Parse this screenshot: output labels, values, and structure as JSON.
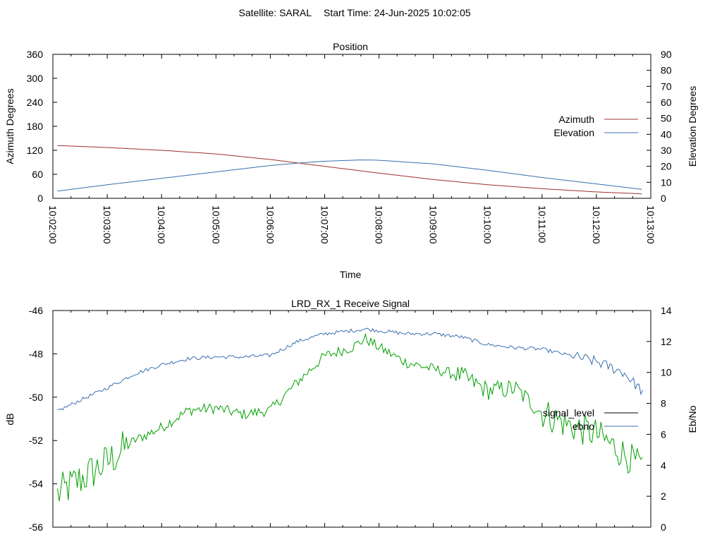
{
  "header": {
    "satellite_label": "Satellite: SARAL",
    "start_time_label": "Start Time: 24-Jun-2025 10:02:05"
  },
  "chart_data": [
    {
      "type": "line",
      "title": "Position",
      "xlabel": "Time",
      "ylabel_left": "Azimuth Degrees",
      "ylabel_right": "Elevation Degrees",
      "xlim": [
        "10:02:00",
        "10:13:00"
      ],
      "x_ticks": [
        "10:02:00",
        "10:03:00",
        "10:04:00",
        "10:05:00",
        "10:06:00",
        "10:07:00",
        "10:08:00",
        "10:09:00",
        "10:10:00",
        "10:11:00",
        "10:12:00",
        "10:13:00"
      ],
      "ylim_left": [
        0,
        360
      ],
      "y_ticks_left": [
        0,
        60,
        120,
        180,
        240,
        300,
        360
      ],
      "ylim_right": [
        0,
        90
      ],
      "y_ticks_right": [
        0,
        10,
        20,
        30,
        40,
        50,
        60,
        70,
        80,
        90
      ],
      "grid": false,
      "legend_position": "right",
      "series": [
        {
          "name": "Azimuth",
          "axis": "left",
          "color": "#a03030",
          "x": [
            "10:02:05",
            "10:03:00",
            "10:04:00",
            "10:05:00",
            "10:06:00",
            "10:07:00",
            "10:08:00",
            "10:09:00",
            "10:10:00",
            "10:11:00",
            "10:12:00",
            "10:12:52"
          ],
          "y": [
            132,
            127,
            120,
            111,
            97,
            80,
            63,
            47,
            34,
            24,
            16,
            11
          ]
        },
        {
          "name": "Elevation",
          "axis": "right",
          "color": "#3a6fb0",
          "x": [
            "10:02:05",
            "10:03:00",
            "10:04:00",
            "10:05:00",
            "10:06:00",
            "10:06:30",
            "10:07:00",
            "10:07:40",
            "10:08:00",
            "10:09:00",
            "10:10:00",
            "10:11:00",
            "10:12:00",
            "10:12:52"
          ],
          "y": [
            4.5,
            8.5,
            12.5,
            16.5,
            20.5,
            22,
            23.2,
            24,
            23.8,
            21.5,
            17.5,
            13,
            9,
            5.5
          ]
        }
      ]
    },
    {
      "type": "line",
      "title": "LRD_RX_1 Receive Signal",
      "xlabel": "",
      "ylabel_left": "dB",
      "ylabel_right": "Eb/No",
      "xlim": [
        "10:02:00",
        "10:13:00"
      ],
      "ylim_left": [
        -56,
        -46
      ],
      "y_ticks_left": [
        -56,
        -54,
        -52,
        -50,
        -48,
        -46
      ],
      "ylim_right": [
        0,
        14
      ],
      "y_ticks_right": [
        0,
        2,
        4,
        6,
        8,
        10,
        12,
        14
      ],
      "grid": false,
      "legend_position": "right",
      "series": [
        {
          "name": "signal_level",
          "axis": "left",
          "color": "#00a000",
          "legend_color": "#000000",
          "x": [
            "10:02:05",
            "10:02:30",
            "10:03:00",
            "10:03:30",
            "10:04:00",
            "10:04:30",
            "10:05:00",
            "10:05:30",
            "10:06:00",
            "10:06:30",
            "10:07:00",
            "10:07:30",
            "10:07:45",
            "10:08:00",
            "10:08:30",
            "10:09:00",
            "10:09:30",
            "10:10:00",
            "10:10:30",
            "10:11:00",
            "10:11:30",
            "10:12:00",
            "10:12:30",
            "10:12:52"
          ],
          "y": [
            -54.5,
            -53.8,
            -53.0,
            -52.0,
            -51.4,
            -50.6,
            -50.5,
            -50.8,
            -50.6,
            -49.3,
            -48.1,
            -47.7,
            -47.3,
            -47.7,
            -48.4,
            -48.7,
            -49.0,
            -49.7,
            -49.6,
            -50.7,
            -51.3,
            -51.7,
            -52.6,
            -53.3
          ]
        },
        {
          "name": "ebno",
          "axis": "right",
          "color": "#3a6fb0",
          "x": [
            "10:02:05",
            "10:02:30",
            "10:03:00",
            "10:03:30",
            "10:04:00",
            "10:04:30",
            "10:05:00",
            "10:05:30",
            "10:06:00",
            "10:06:30",
            "10:07:00",
            "10:07:30",
            "10:07:45",
            "10:08:00",
            "10:08:30",
            "10:09:00",
            "10:09:30",
            "10:10:00",
            "10:10:30",
            "10:11:00",
            "10:11:30",
            "10:12:00",
            "10:12:30",
            "10:12:52"
          ],
          "y": [
            7.5,
            8.2,
            9.0,
            9.9,
            10.5,
            10.9,
            11.0,
            11.0,
            11.1,
            12.0,
            12.5,
            12.7,
            12.8,
            12.7,
            12.5,
            12.5,
            12.3,
            11.8,
            11.6,
            11.5,
            11.1,
            10.7,
            10.0,
            8.7
          ]
        }
      ]
    }
  ]
}
